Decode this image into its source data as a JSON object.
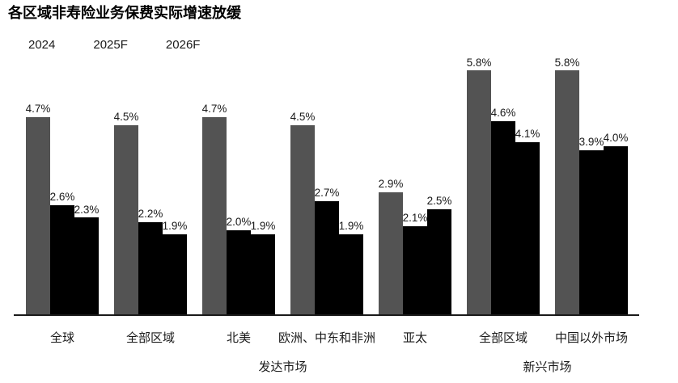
{
  "title": "各区域非寿险业务保费实际增速放缓",
  "legend": {
    "items": [
      "2024",
      "2025F",
      "2026F"
    ]
  },
  "chart_data": {
    "type": "bar",
    "title": "各区域非寿险业务保费实际增速放缓",
    "unit": "%",
    "value_labels": true,
    "grid": false,
    "legend_position": "top-left",
    "categories": [
      "全球",
      "全部区域",
      "北美",
      "欧洲、中东和非洲",
      "亚太",
      "全部区域",
      "中国以外市场"
    ],
    "category_groups": [
      {
        "label": "发达市场",
        "from": 1,
        "to": 4
      },
      {
        "label": "新兴市场",
        "from": 5,
        "to": 6
      }
    ],
    "series": [
      {
        "name": "2024",
        "color": "#535353",
        "values": [
          4.7,
          4.5,
          4.7,
          4.5,
          2.9,
          5.8,
          5.8
        ]
      },
      {
        "name": "2025F",
        "color": "#000000",
        "values": [
          2.6,
          2.2,
          2.0,
          2.7,
          2.1,
          4.6,
          3.9
        ]
      },
      {
        "name": "2026F",
        "color": "#000000",
        "values": [
          2.3,
          1.9,
          1.9,
          1.9,
          2.5,
          4.1,
          4.0
        ]
      }
    ],
    "ylim": [
      0,
      6.2
    ],
    "axis_colors": {
      "baseline": "#1a1a1a"
    }
  }
}
